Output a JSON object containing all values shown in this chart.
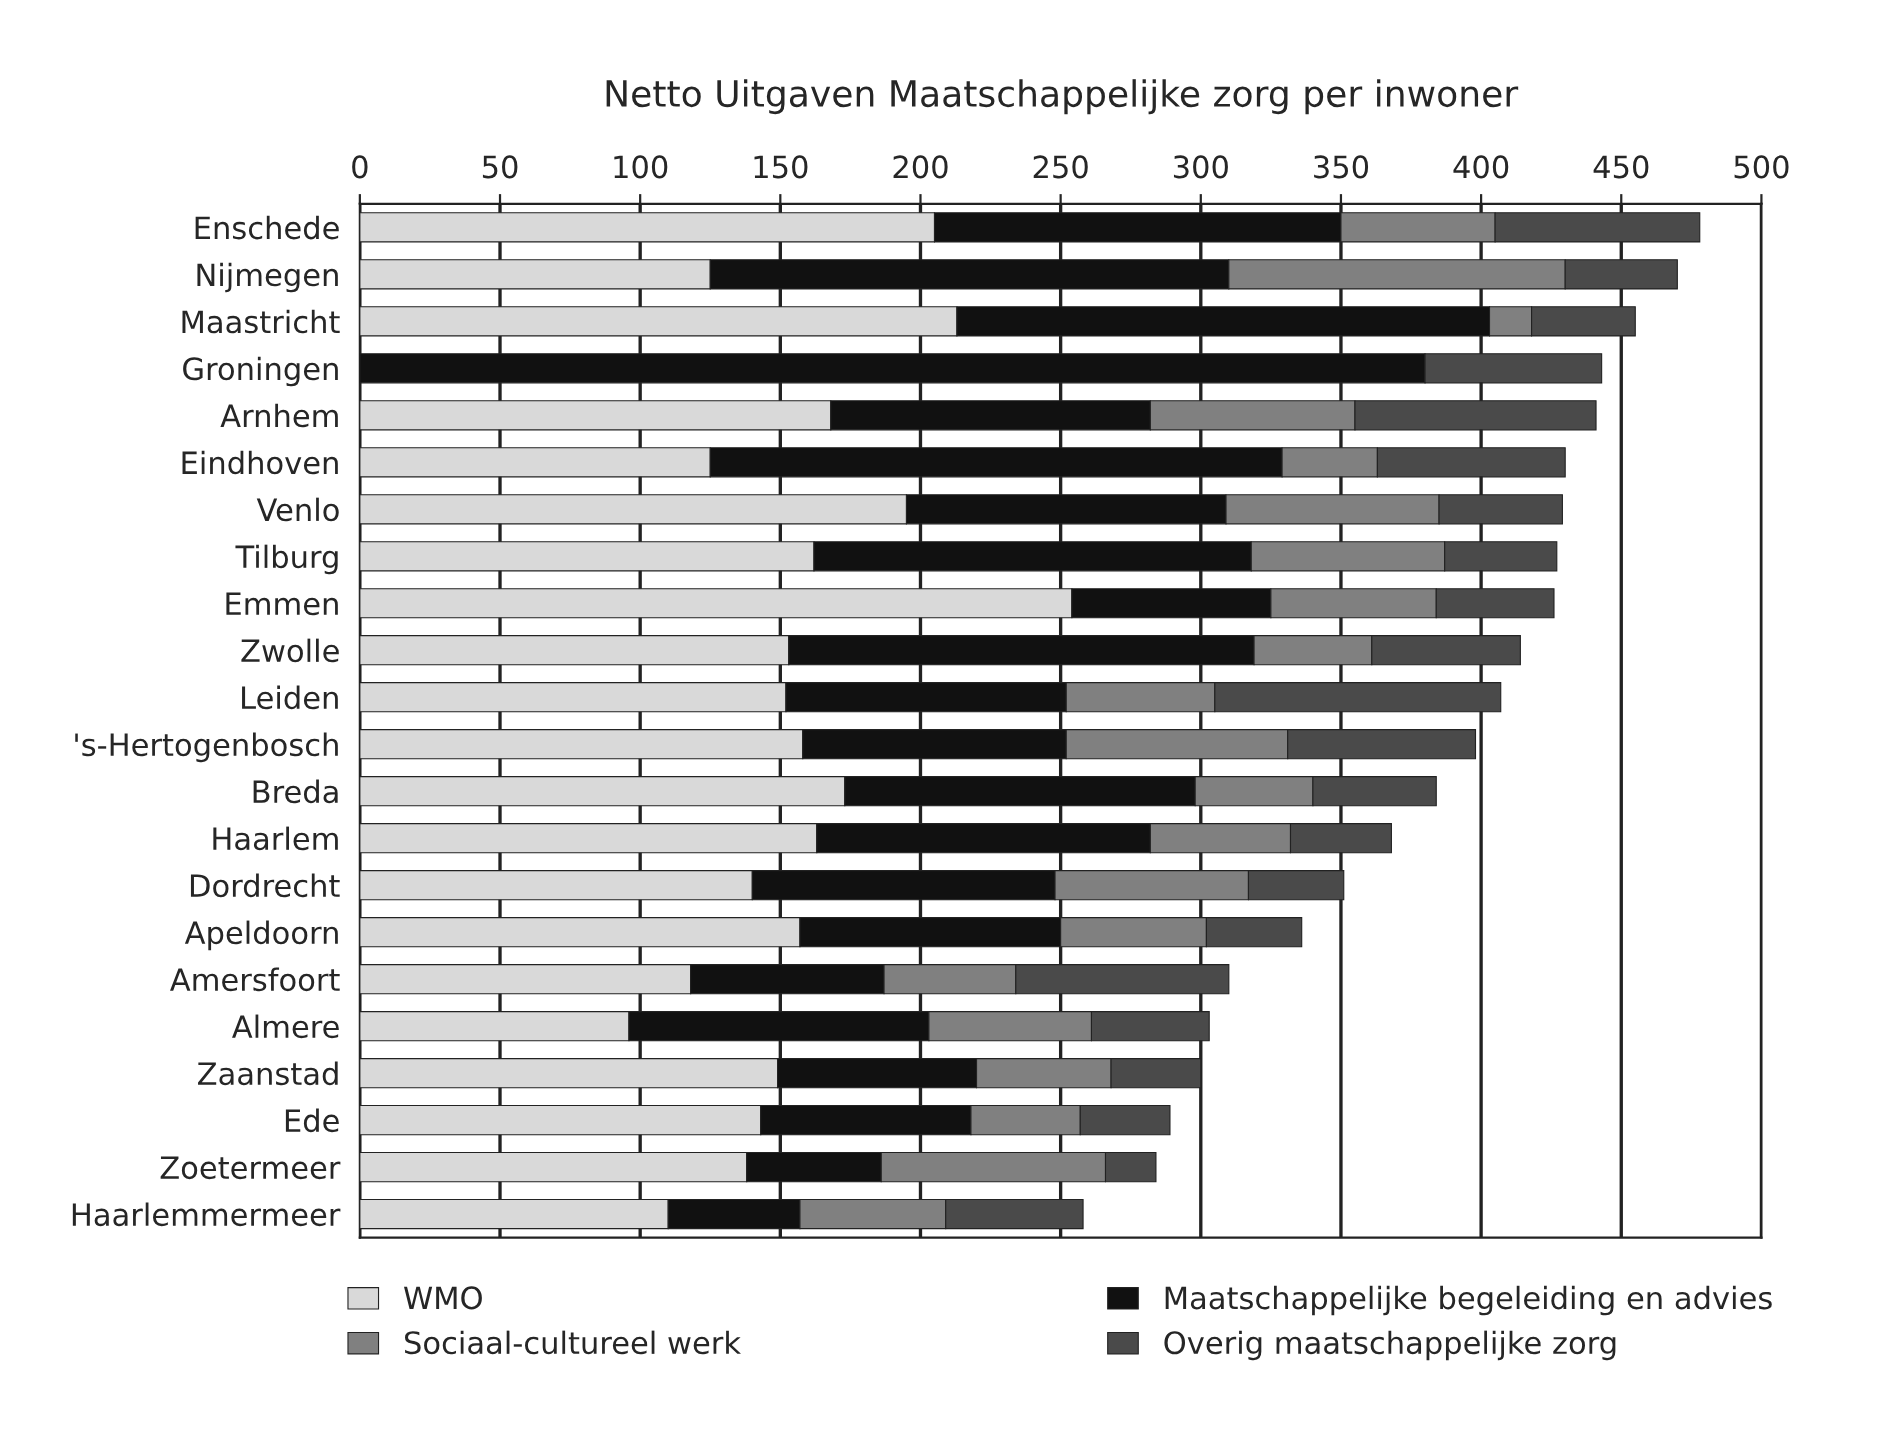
{
  "chart_data": {
    "type": "bar",
    "orientation": "horizontal",
    "stacked": true,
    "title": "Netto Uitgaven Maatschappelijke zorg per inwoner",
    "categories": [
      "Enschede",
      "Nijmegen",
      "Maastricht",
      "Groningen",
      "Arnhem",
      "Eindhoven",
      "Venlo",
      "Tilburg",
      "Emmen",
      "Zwolle",
      "Leiden",
      "'s-Hertogenbosch",
      "Breda",
      "Haarlem",
      "Dordrecht",
      "Apeldoorn",
      "Amersfoort",
      "Almere",
      "Zaanstad",
      "Ede",
      "Zoetermeer",
      "Haarlemmermeer"
    ],
    "series": [
      {
        "name": "WMO",
        "color": "#d9d9d9",
        "values": [
          205,
          125,
          213,
          0,
          168,
          125,
          195,
          162,
          254,
          153,
          152,
          158,
          173,
          163,
          140,
          157,
          118,
          96,
          149,
          143,
          138,
          110
        ]
      },
      {
        "name": "Maatschappelijke begeleiding en advies",
        "color": "#111111",
        "values": [
          145,
          185,
          190,
          380,
          114,
          204,
          114,
          156,
          71,
          166,
          100,
          94,
          125,
          119,
          108,
          93,
          69,
          107,
          71,
          75,
          48,
          47
        ]
      },
      {
        "name": "Sociaal-cultureel werk",
        "color": "#808080",
        "values": [
          55,
          120,
          15,
          0,
          73,
          34,
          76,
          69,
          59,
          42,
          53,
          79,
          42,
          50,
          69,
          52,
          47,
          58,
          48,
          39,
          80,
          52
        ]
      },
      {
        "name": "Overig maatschappelijke zorg",
        "color": "#4a4a4a",
        "values": [
          73,
          40,
          37,
          63,
          86,
          67,
          44,
          40,
          42,
          53,
          102,
          67,
          44,
          36,
          34,
          34,
          76,
          42,
          32,
          32,
          18,
          49
        ]
      }
    ],
    "xlim": [
      0,
      500
    ],
    "xticks": [
      0,
      50,
      100,
      150,
      200,
      250,
      300,
      350,
      400,
      450,
      500
    ],
    "grid": "x",
    "legend": "bottom"
  }
}
